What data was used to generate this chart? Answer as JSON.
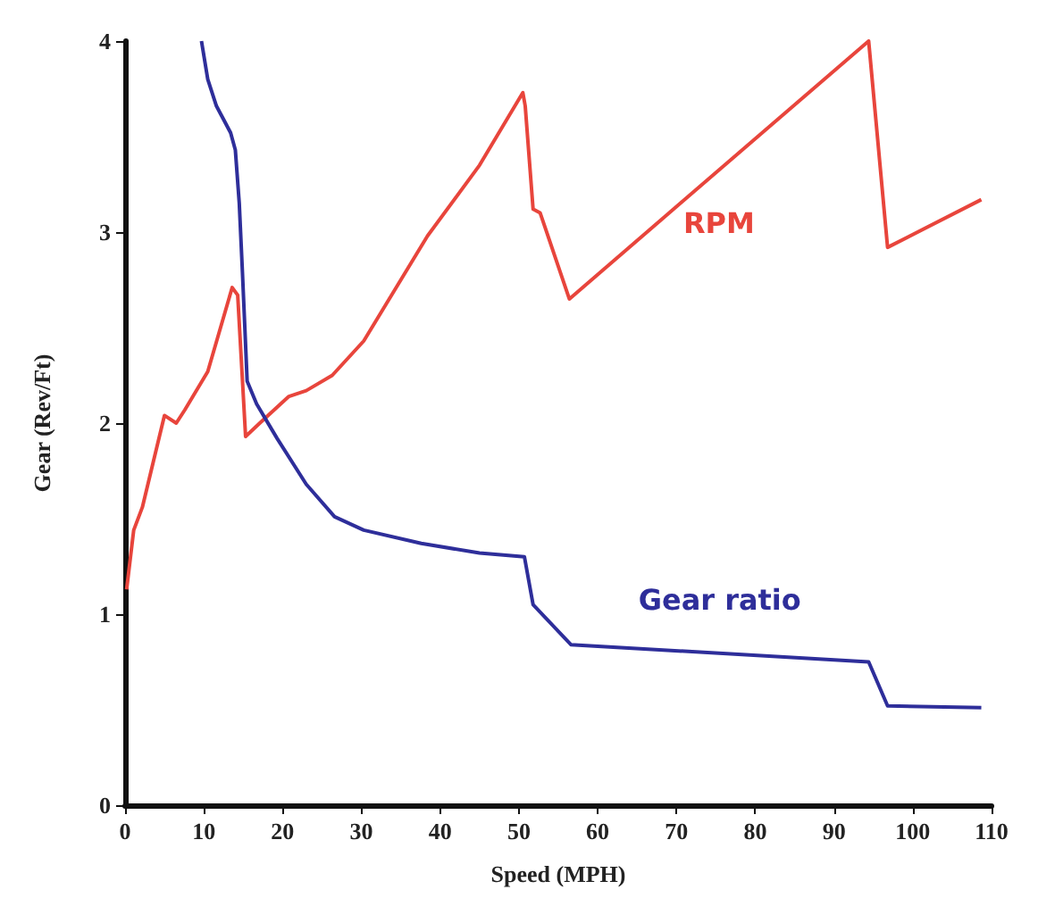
{
  "chart_data": {
    "type": "line",
    "xlabel": "Speed (MPH)",
    "ylabel": "Gear (Rev/Ft)",
    "xlim": [
      0,
      110
    ],
    "ylim": [
      0,
      4
    ],
    "xticks": [
      0,
      10,
      20,
      30,
      40,
      50,
      60,
      70,
      80,
      90,
      100,
      110
    ],
    "yticks": [
      0,
      1,
      2,
      3,
      4
    ],
    "grid": false,
    "marker": "none",
    "line_style": "solid",
    "series": [
      {
        "name": "RPM",
        "color": "#e8453c",
        "x": [
          0.2,
          1.1,
          2.2,
          5.0,
          6.5,
          7.6,
          10.5,
          13.6,
          14.3,
          15.3,
          17.1,
          20.8,
          23,
          26.3,
          30.3,
          38.4,
          45,
          50.5,
          50.8,
          51.8,
          52.7,
          56.4,
          94.4,
          96.8,
          108.7
        ],
        "values": [
          1.13,
          1.44,
          1.56,
          2.04,
          2.0,
          2.07,
          2.27,
          2.71,
          2.67,
          1.93,
          2.0,
          2.14,
          2.17,
          2.25,
          2.43,
          2.98,
          3.35,
          3.73,
          3.66,
          3.12,
          3.1,
          2.65,
          4.0,
          2.92,
          3.17
        ]
      },
      {
        "name": "Gear ratio",
        "color": "#2e2e9a",
        "x": [
          9.7,
          10.5,
          11.6,
          13.4,
          14.0,
          14.5,
          14.9,
          15.5,
          16.7,
          19.3,
          23,
          26.6,
          30.3,
          37.6,
          45,
          50.7,
          51.8,
          56.6,
          94.4,
          96.8,
          108.7
        ],
        "values": [
          4.0,
          3.8,
          3.66,
          3.52,
          3.43,
          3.15,
          2.79,
          2.22,
          2.1,
          1.92,
          1.68,
          1.51,
          1.44,
          1.37,
          1.32,
          1.3,
          1.05,
          0.84,
          0.75,
          0.52,
          0.51
        ]
      }
    ]
  }
}
